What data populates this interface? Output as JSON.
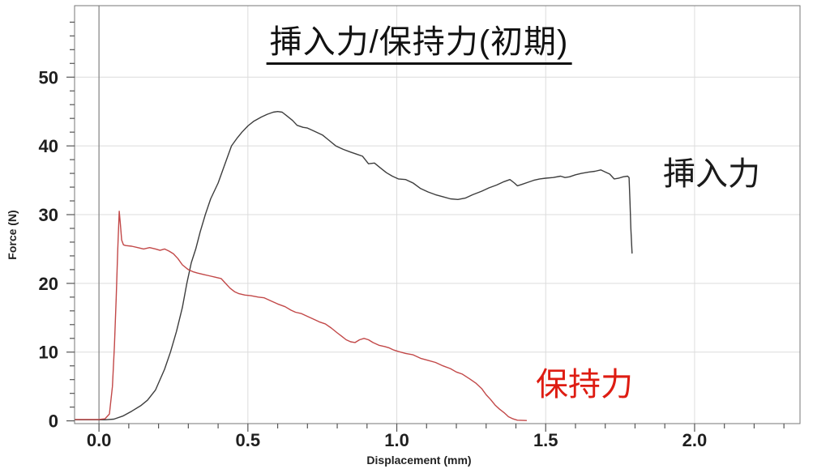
{
  "chart_data": {
    "type": "line",
    "title": "挿入力/保持力(初期)",
    "xlabel": "Displacement (mm)",
    "ylabel": "Force (N)",
    "xlim": [
      -0.082,
      2.354
    ],
    "ylim": [
      -0.4,
      60.4
    ],
    "grid": true,
    "legend_position": "none",
    "axes": {
      "x": {
        "label": "Displacement (mm)",
        "major_ticks": [
          0,
          0.5,
          1,
          1.5,
          2
        ],
        "tick_labels": [
          "0.0",
          "0.5",
          "1.0",
          "1.5",
          "2.0"
        ],
        "minor_step": 0.1,
        "minor_max": 2.3,
        "grid_at": [
          0.5,
          1,
          1.5,
          2
        ],
        "zero_line_at": 0
      },
      "y": {
        "label": "Force (N)",
        "major_ticks": [
          0,
          10,
          20,
          30,
          40,
          50
        ],
        "tick_labels": [
          "0",
          "10",
          "20",
          "30",
          "40",
          "50"
        ],
        "minor_step": 2,
        "minor_max": 58,
        "grid_at": [
          10,
          20,
          30,
          40,
          50
        ]
      }
    },
    "colors": {
      "insertion_curve": "#3d3d3d",
      "retention_curve": "#c24848",
      "grid": "#dcdcdc",
      "zero_line": "#8a8a8a",
      "frame": "#777777",
      "tick": "#555555",
      "tick_label": "#1f1f1f",
      "retention_label": "#de1c12",
      "insertion_label": "#1a1a1a"
    },
    "series": [
      {
        "name": "挿入力",
        "color": "#3d3d3d",
        "points": [
          [
            -0.08,
            0.15
          ],
          [
            0.02,
            0.15
          ],
          [
            0.05,
            0.25
          ],
          [
            0.08,
            0.7
          ],
          [
            0.11,
            1.4
          ],
          [
            0.14,
            2.2
          ],
          [
            0.163,
            3.0
          ],
          [
            0.19,
            4.5
          ],
          [
            0.2,
            5.5
          ],
          [
            0.22,
            7.5
          ],
          [
            0.24,
            10.0
          ],
          [
            0.26,
            13.0
          ],
          [
            0.28,
            16.5
          ],
          [
            0.295,
            20.0
          ],
          [
            0.31,
            23.0
          ],
          [
            0.325,
            25.0
          ],
          [
            0.34,
            27.5
          ],
          [
            0.357,
            30.0
          ],
          [
            0.375,
            32.3
          ],
          [
            0.4,
            34.6
          ],
          [
            0.42,
            37.0
          ],
          [
            0.445,
            40.0
          ],
          [
            0.465,
            41.2
          ],
          [
            0.48,
            42.0
          ],
          [
            0.5,
            42.9
          ],
          [
            0.52,
            43.6
          ],
          [
            0.545,
            44.2
          ],
          [
            0.565,
            44.6
          ],
          [
            0.585,
            44.9
          ],
          [
            0.6,
            45.0
          ],
          [
            0.615,
            44.9
          ],
          [
            0.63,
            44.4
          ],
          [
            0.65,
            43.7
          ],
          [
            0.665,
            43.0
          ],
          [
            0.685,
            42.7
          ],
          [
            0.7,
            42.6
          ],
          [
            0.72,
            42.2
          ],
          [
            0.75,
            41.6
          ],
          [
            0.77,
            40.9
          ],
          [
            0.795,
            40.0
          ],
          [
            0.82,
            39.5
          ],
          [
            0.845,
            39.1
          ],
          [
            0.865,
            38.8
          ],
          [
            0.885,
            38.5
          ],
          [
            0.905,
            37.4
          ],
          [
            0.925,
            37.5
          ],
          [
            0.945,
            36.8
          ],
          [
            0.965,
            36.1
          ],
          [
            0.985,
            35.6
          ],
          [
            1.005,
            35.2
          ],
          [
            1.03,
            35.1
          ],
          [
            1.055,
            34.6
          ],
          [
            1.08,
            33.8
          ],
          [
            1.105,
            33.3
          ],
          [
            1.13,
            32.9
          ],
          [
            1.155,
            32.6
          ],
          [
            1.18,
            32.3
          ],
          [
            1.205,
            32.2
          ],
          [
            1.23,
            32.4
          ],
          [
            1.255,
            32.9
          ],
          [
            1.285,
            33.4
          ],
          [
            1.31,
            33.9
          ],
          [
            1.335,
            34.3
          ],
          [
            1.36,
            34.8
          ],
          [
            1.38,
            35.1
          ],
          [
            1.395,
            34.6
          ],
          [
            1.405,
            34.2
          ],
          [
            1.42,
            34.4
          ],
          [
            1.44,
            34.7
          ],
          [
            1.46,
            35.0
          ],
          [
            1.48,
            35.2
          ],
          [
            1.5,
            35.3
          ],
          [
            1.525,
            35.4
          ],
          [
            1.55,
            35.6
          ],
          [
            1.565,
            35.4
          ],
          [
            1.58,
            35.5
          ],
          [
            1.6,
            35.8
          ],
          [
            1.62,
            36.0
          ],
          [
            1.645,
            36.2
          ],
          [
            1.665,
            36.3
          ],
          [
            1.685,
            36.5
          ],
          [
            1.7,
            36.2
          ],
          [
            1.715,
            35.9
          ],
          [
            1.73,
            35.2
          ],
          [
            1.745,
            35.3
          ],
          [
            1.76,
            35.5
          ],
          [
            1.775,
            35.6
          ],
          [
            1.78,
            35.4
          ],
          [
            1.783,
            32.0
          ],
          [
            1.786,
            28.0
          ],
          [
            1.79,
            24.4
          ]
        ]
      },
      {
        "name": "保持力",
        "color": "#c24848",
        "points": [
          [
            -0.08,
            0.2
          ],
          [
            0.0,
            0.2
          ],
          [
            0.02,
            0.3
          ],
          [
            0.035,
            1.0
          ],
          [
            0.045,
            5.0
          ],
          [
            0.052,
            11.0
          ],
          [
            0.058,
            18.0
          ],
          [
            0.063,
            25.0
          ],
          [
            0.068,
            30.5
          ],
          [
            0.072,
            28.5
          ],
          [
            0.076,
            26.3
          ],
          [
            0.082,
            25.6
          ],
          [
            0.09,
            25.5
          ],
          [
            0.11,
            25.4
          ],
          [
            0.13,
            25.2
          ],
          [
            0.15,
            25.0
          ],
          [
            0.17,
            25.2
          ],
          [
            0.19,
            25.0
          ],
          [
            0.205,
            24.8
          ],
          [
            0.22,
            25.0
          ],
          [
            0.235,
            24.7
          ],
          [
            0.25,
            24.3
          ],
          [
            0.265,
            23.6
          ],
          [
            0.28,
            22.7
          ],
          [
            0.3,
            22.0
          ],
          [
            0.315,
            21.7
          ],
          [
            0.33,
            21.5
          ],
          [
            0.35,
            21.3
          ],
          [
            0.37,
            21.1
          ],
          [
            0.39,
            20.9
          ],
          [
            0.41,
            20.7
          ],
          [
            0.425,
            20.0
          ],
          [
            0.44,
            19.3
          ],
          [
            0.455,
            18.8
          ],
          [
            0.47,
            18.5
          ],
          [
            0.49,
            18.3
          ],
          [
            0.51,
            18.2
          ],
          [
            0.535,
            18.0
          ],
          [
            0.555,
            17.9
          ],
          [
            0.575,
            17.5
          ],
          [
            0.6,
            17.0
          ],
          [
            0.625,
            16.6
          ],
          [
            0.645,
            16.1
          ],
          [
            0.66,
            15.8
          ],
          [
            0.68,
            15.6
          ],
          [
            0.7,
            15.2
          ],
          [
            0.72,
            14.8
          ],
          [
            0.74,
            14.4
          ],
          [
            0.76,
            14.1
          ],
          [
            0.78,
            13.5
          ],
          [
            0.8,
            12.8
          ],
          [
            0.815,
            12.3
          ],
          [
            0.83,
            11.8
          ],
          [
            0.845,
            11.5
          ],
          [
            0.86,
            11.4
          ],
          [
            0.875,
            11.8
          ],
          [
            0.89,
            12.0
          ],
          [
            0.905,
            11.8
          ],
          [
            0.92,
            11.4
          ],
          [
            0.94,
            11.0
          ],
          [
            0.96,
            10.8
          ],
          [
            0.975,
            10.6
          ],
          [
            0.99,
            10.3
          ],
          [
            1.005,
            10.1
          ],
          [
            1.03,
            9.8
          ],
          [
            1.055,
            9.6
          ],
          [
            1.08,
            9.1
          ],
          [
            1.105,
            8.8
          ],
          [
            1.13,
            8.5
          ],
          [
            1.155,
            8.0
          ],
          [
            1.18,
            7.6
          ],
          [
            1.2,
            7.1
          ],
          [
            1.22,
            6.8
          ],
          [
            1.245,
            6.1
          ],
          [
            1.265,
            5.5
          ],
          [
            1.285,
            4.7
          ],
          [
            1.3,
            3.8
          ],
          [
            1.315,
            3.1
          ],
          [
            1.33,
            2.3
          ],
          [
            1.345,
            1.7
          ],
          [
            1.36,
            1.2
          ],
          [
            1.375,
            0.6
          ],
          [
            1.39,
            0.3
          ],
          [
            1.405,
            0.1
          ],
          [
            1.435,
            0.05
          ]
        ]
      }
    ],
    "annotations": [
      {
        "text": "挿入力",
        "color": "#1a1a1a"
      },
      {
        "text": "保持力",
        "color": "#de1c12"
      }
    ]
  }
}
